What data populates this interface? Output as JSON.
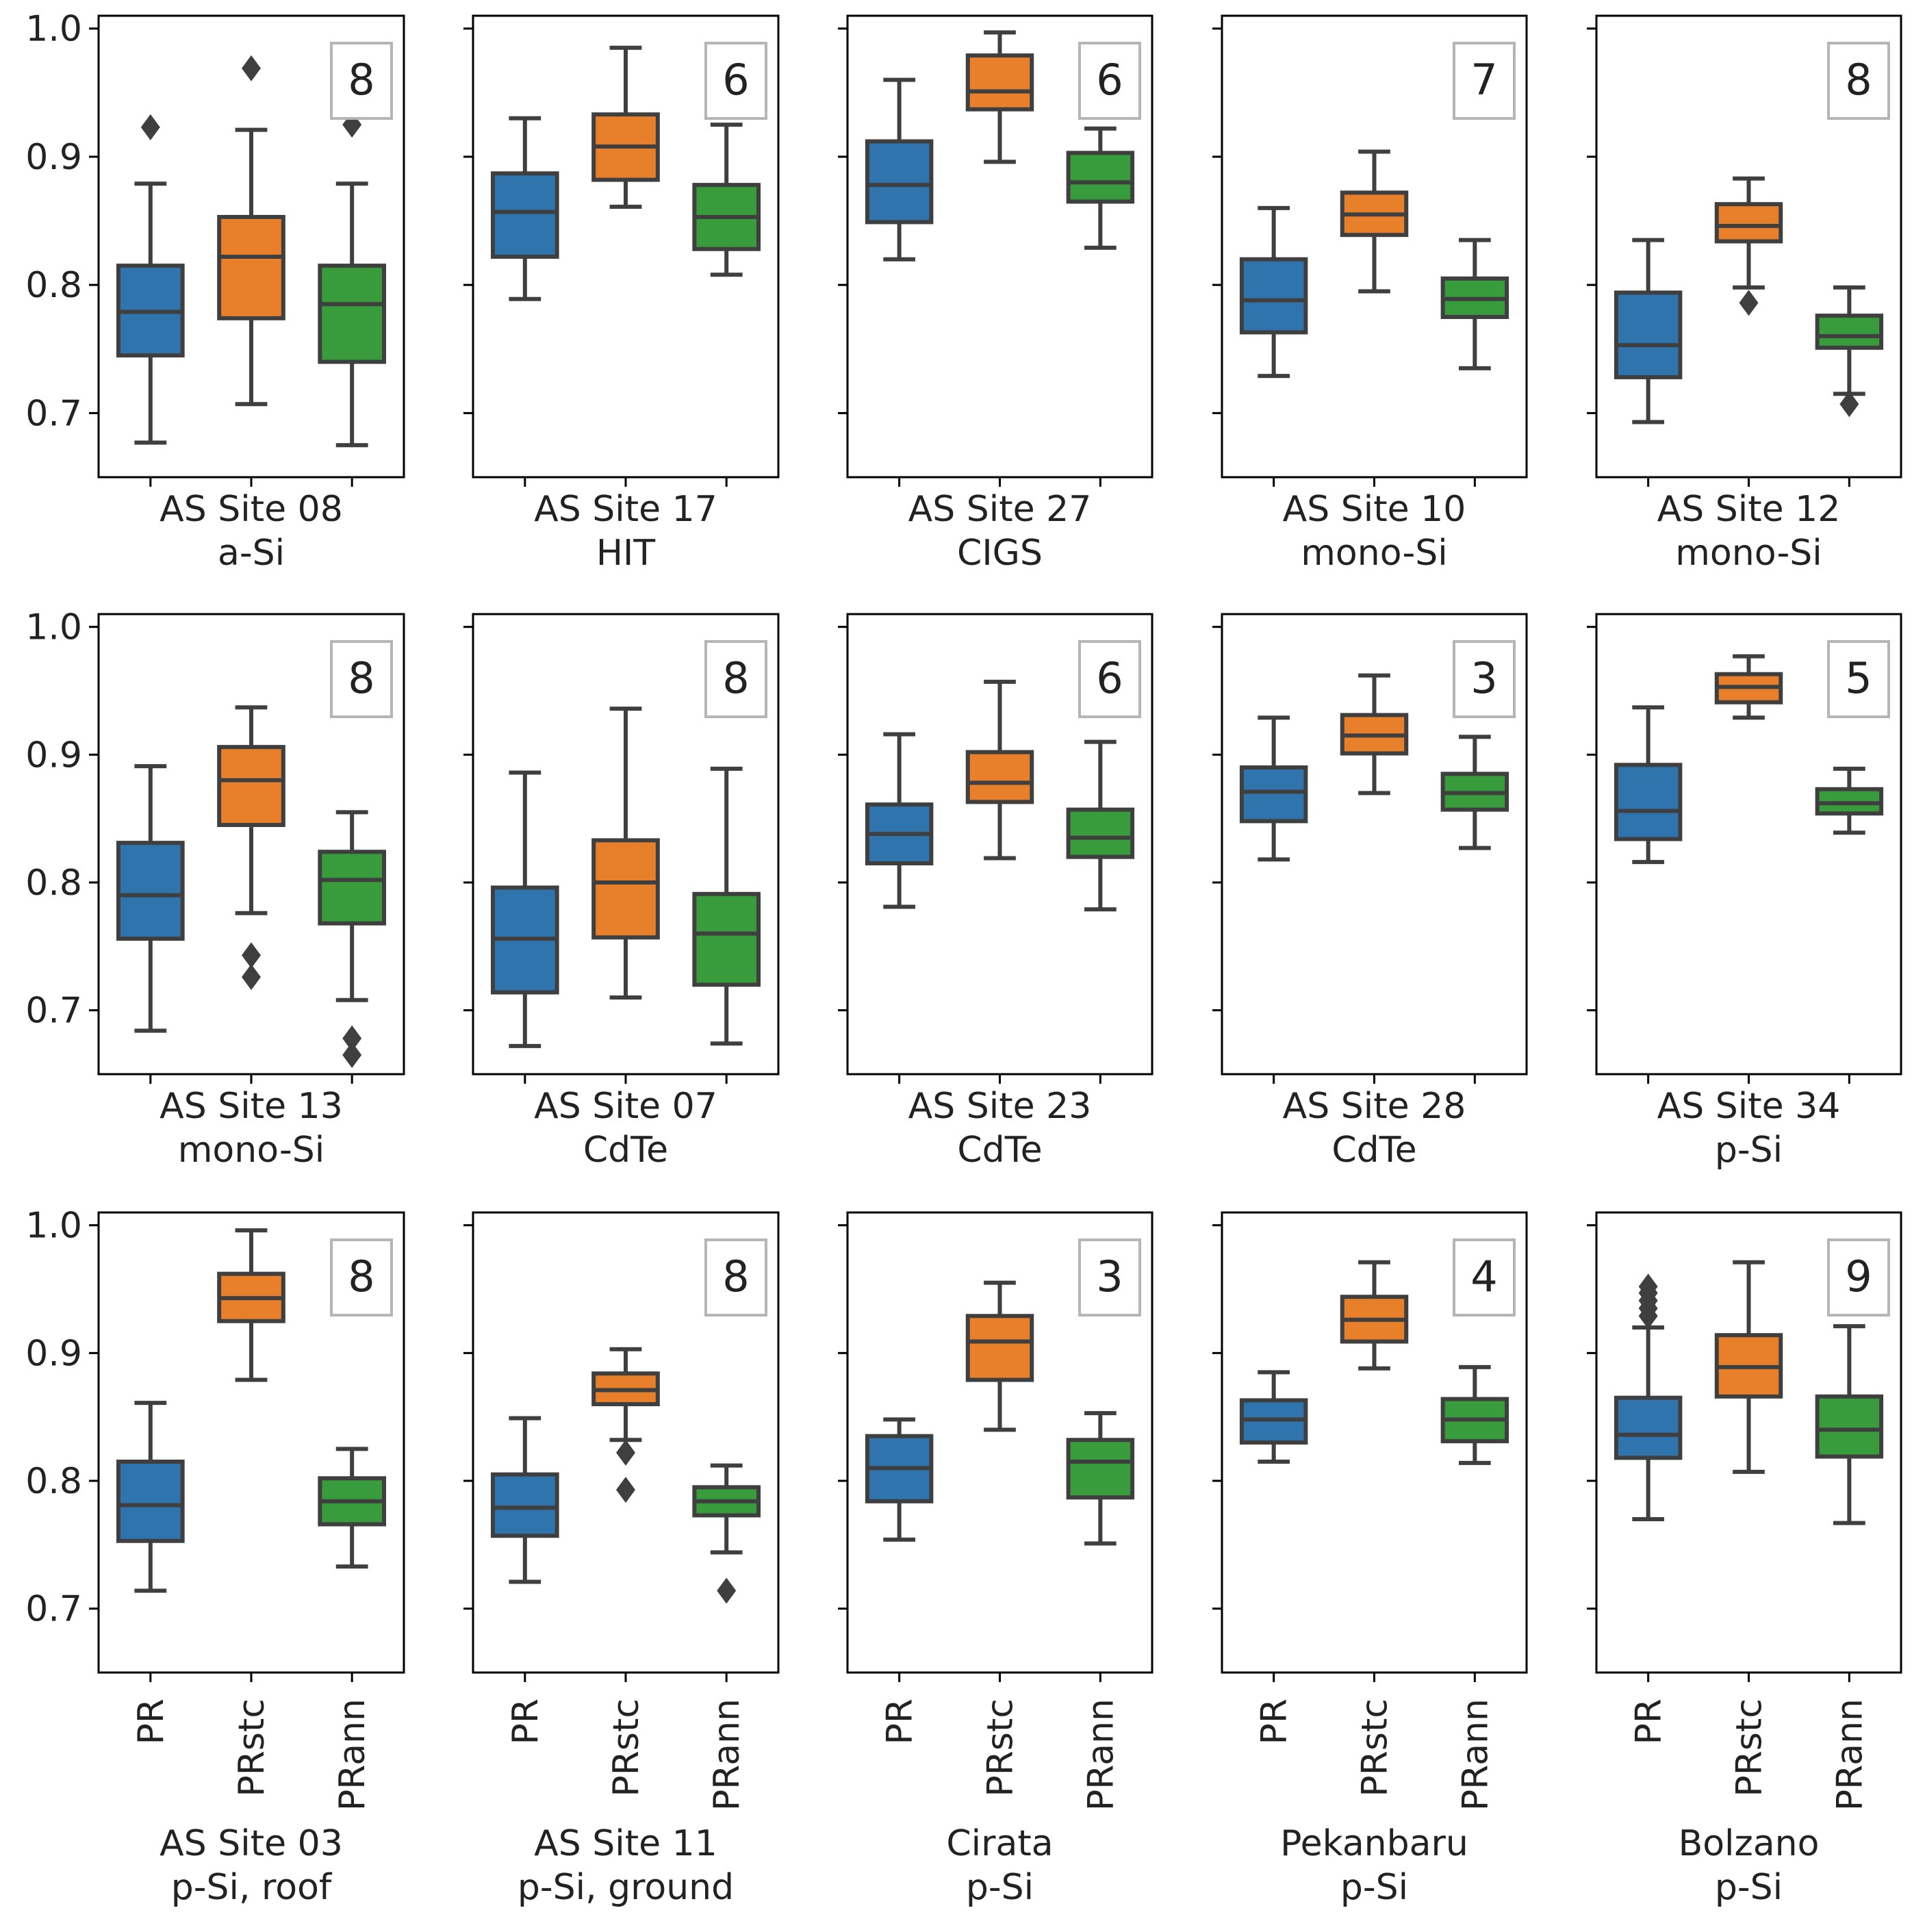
{
  "chart_data": {
    "type": "box",
    "layout": "3x5 grid of subplots, shared y-axis per row",
    "ylim": [
      0.65,
      1.01
    ],
    "yticks": [
      "0.7",
      "0.8",
      "0.9",
      "1.0"
    ],
    "ytick_values": [
      0.7,
      0.8,
      0.9,
      1.0
    ],
    "series": [
      {
        "name": "PR",
        "color": "#2f74ad"
      },
      {
        "name": "PRstc",
        "color": "#e8802b"
      },
      {
        "name": "PRann",
        "color": "#389b3c"
      }
    ],
    "panels": [
      {
        "row": 0,
        "col": 0,
        "site": "AS Site 08",
        "tech": "a-Si",
        "n": "8",
        "boxes": [
          {
            "q1": 0.745,
            "median": 0.779,
            "q3": 0.815,
            "wlo": 0.677,
            "whi": 0.879,
            "outliers": [
              0.923
            ]
          },
          {
            "q1": 0.774,
            "median": 0.822,
            "q3": 0.853,
            "wlo": 0.707,
            "whi": 0.921,
            "outliers": [
              0.969
            ]
          },
          {
            "q1": 0.74,
            "median": 0.785,
            "q3": 0.815,
            "wlo": 0.675,
            "whi": 0.879,
            "outliers": [
              0.925
            ]
          }
        ]
      },
      {
        "row": 0,
        "col": 1,
        "site": "AS Site 17",
        "tech": "HIT",
        "n": "6",
        "boxes": [
          {
            "q1": 0.822,
            "median": 0.857,
            "q3": 0.887,
            "wlo": 0.789,
            "whi": 0.93,
            "outliers": []
          },
          {
            "q1": 0.882,
            "median": 0.908,
            "q3": 0.933,
            "wlo": 0.861,
            "whi": 0.985,
            "outliers": []
          },
          {
            "q1": 0.828,
            "median": 0.853,
            "q3": 0.878,
            "wlo": 0.808,
            "whi": 0.925,
            "outliers": []
          }
        ]
      },
      {
        "row": 0,
        "col": 2,
        "site": "AS Site 27",
        "tech": "CIGS",
        "n": "6",
        "boxes": [
          {
            "q1": 0.849,
            "median": 0.878,
            "q3": 0.912,
            "wlo": 0.82,
            "whi": 0.96,
            "outliers": []
          },
          {
            "q1": 0.937,
            "median": 0.951,
            "q3": 0.979,
            "wlo": 0.896,
            "whi": 0.997,
            "outliers": []
          },
          {
            "q1": 0.865,
            "median": 0.88,
            "q3": 0.903,
            "wlo": 0.829,
            "whi": 0.922,
            "outliers": []
          }
        ]
      },
      {
        "row": 0,
        "col": 3,
        "site": "AS Site 10",
        "tech": "mono-Si",
        "n": "7",
        "boxes": [
          {
            "q1": 0.763,
            "median": 0.788,
            "q3": 0.82,
            "wlo": 0.729,
            "whi": 0.86,
            "outliers": []
          },
          {
            "q1": 0.839,
            "median": 0.855,
            "q3": 0.872,
            "wlo": 0.795,
            "whi": 0.904,
            "outliers": []
          },
          {
            "q1": 0.775,
            "median": 0.789,
            "q3": 0.805,
            "wlo": 0.735,
            "whi": 0.835,
            "outliers": []
          }
        ]
      },
      {
        "row": 0,
        "col": 4,
        "site": "AS Site 12",
        "tech": "mono-Si",
        "n": "8",
        "boxes": [
          {
            "q1": 0.728,
            "median": 0.753,
            "q3": 0.794,
            "wlo": 0.693,
            "whi": 0.835,
            "outliers": []
          },
          {
            "q1": 0.834,
            "median": 0.846,
            "q3": 0.863,
            "wlo": 0.798,
            "whi": 0.883,
            "outliers": [
              0.786
            ]
          },
          {
            "q1": 0.751,
            "median": 0.76,
            "q3": 0.776,
            "wlo": 0.715,
            "whi": 0.798,
            "outliers": [
              0.707
            ]
          }
        ]
      },
      {
        "row": 1,
        "col": 0,
        "site": "AS Site 13",
        "tech": "mono-Si",
        "n": "8",
        "boxes": [
          {
            "q1": 0.756,
            "median": 0.79,
            "q3": 0.831,
            "wlo": 0.684,
            "whi": 0.891,
            "outliers": []
          },
          {
            "q1": 0.845,
            "median": 0.88,
            "q3": 0.906,
            "wlo": 0.776,
            "whi": 0.937,
            "outliers": [
              0.743,
              0.726
            ]
          },
          {
            "q1": 0.768,
            "median": 0.802,
            "q3": 0.824,
            "wlo": 0.708,
            "whi": 0.855,
            "outliers": [
              0.678,
              0.665
            ]
          }
        ]
      },
      {
        "row": 1,
        "col": 1,
        "site": "AS Site 07",
        "tech": "CdTe",
        "n": "8",
        "boxes": [
          {
            "q1": 0.714,
            "median": 0.756,
            "q3": 0.796,
            "wlo": 0.672,
            "whi": 0.886,
            "outliers": []
          },
          {
            "q1": 0.757,
            "median": 0.8,
            "q3": 0.833,
            "wlo": 0.71,
            "whi": 0.936,
            "outliers": []
          },
          {
            "q1": 0.72,
            "median": 0.76,
            "q3": 0.791,
            "wlo": 0.674,
            "whi": 0.889,
            "outliers": []
          }
        ]
      },
      {
        "row": 1,
        "col": 2,
        "site": "AS Site 23",
        "tech": "CdTe",
        "n": "6",
        "boxes": [
          {
            "q1": 0.815,
            "median": 0.838,
            "q3": 0.861,
            "wlo": 0.781,
            "whi": 0.916,
            "outliers": []
          },
          {
            "q1": 0.863,
            "median": 0.878,
            "q3": 0.902,
            "wlo": 0.819,
            "whi": 0.957,
            "outliers": []
          },
          {
            "q1": 0.82,
            "median": 0.835,
            "q3": 0.857,
            "wlo": 0.779,
            "whi": 0.91,
            "outliers": []
          }
        ]
      },
      {
        "row": 1,
        "col": 3,
        "site": "AS Site 28",
        "tech": "CdTe",
        "n": "3",
        "boxes": [
          {
            "q1": 0.848,
            "median": 0.871,
            "q3": 0.89,
            "wlo": 0.818,
            "whi": 0.929,
            "outliers": []
          },
          {
            "q1": 0.901,
            "median": 0.915,
            "q3": 0.931,
            "wlo": 0.87,
            "whi": 0.962,
            "outliers": []
          },
          {
            "q1": 0.857,
            "median": 0.87,
            "q3": 0.885,
            "wlo": 0.827,
            "whi": 0.914,
            "outliers": []
          }
        ]
      },
      {
        "row": 1,
        "col": 4,
        "site": "AS Site 34",
        "tech": "p-Si",
        "n": "5",
        "boxes": [
          {
            "q1": 0.834,
            "median": 0.856,
            "q3": 0.892,
            "wlo": 0.816,
            "whi": 0.937,
            "outliers": []
          },
          {
            "q1": 0.941,
            "median": 0.953,
            "q3": 0.963,
            "wlo": 0.929,
            "whi": 0.977,
            "outliers": []
          },
          {
            "q1": 0.854,
            "median": 0.862,
            "q3": 0.873,
            "wlo": 0.839,
            "whi": 0.889,
            "outliers": []
          }
        ]
      },
      {
        "row": 2,
        "col": 0,
        "site": "AS Site 03",
        "tech": "p-Si, roof",
        "n": "8",
        "boxes": [
          {
            "q1": 0.753,
            "median": 0.781,
            "q3": 0.815,
            "wlo": 0.714,
            "whi": 0.861,
            "outliers": []
          },
          {
            "q1": 0.925,
            "median": 0.943,
            "q3": 0.962,
            "wlo": 0.879,
            "whi": 0.996,
            "outliers": []
          },
          {
            "q1": 0.766,
            "median": 0.784,
            "q3": 0.802,
            "wlo": 0.733,
            "whi": 0.825,
            "outliers": []
          }
        ]
      },
      {
        "row": 2,
        "col": 1,
        "site": "AS Site 11",
        "tech": "p-Si, ground",
        "n": "8",
        "boxes": [
          {
            "q1": 0.757,
            "median": 0.779,
            "q3": 0.805,
            "wlo": 0.721,
            "whi": 0.849,
            "outliers": []
          },
          {
            "q1": 0.86,
            "median": 0.871,
            "q3": 0.884,
            "wlo": 0.832,
            "whi": 0.903,
            "outliers": [
              0.822,
              0.793
            ]
          },
          {
            "q1": 0.773,
            "median": 0.784,
            "q3": 0.795,
            "wlo": 0.744,
            "whi": 0.812,
            "outliers": [
              0.714
            ]
          }
        ]
      },
      {
        "row": 2,
        "col": 2,
        "site": "Cirata",
        "tech": "p-Si",
        "n": "3",
        "boxes": [
          {
            "q1": 0.784,
            "median": 0.81,
            "q3": 0.835,
            "wlo": 0.754,
            "whi": 0.848,
            "outliers": []
          },
          {
            "q1": 0.879,
            "median": 0.909,
            "q3": 0.929,
            "wlo": 0.84,
            "whi": 0.955,
            "outliers": []
          },
          {
            "q1": 0.787,
            "median": 0.815,
            "q3": 0.832,
            "wlo": 0.751,
            "whi": 0.853,
            "outliers": []
          }
        ]
      },
      {
        "row": 2,
        "col": 3,
        "site": "Pekanbaru",
        "tech": "p-Si",
        "n": "4",
        "boxes": [
          {
            "q1": 0.83,
            "median": 0.848,
            "q3": 0.863,
            "wlo": 0.815,
            "whi": 0.885,
            "outliers": []
          },
          {
            "q1": 0.909,
            "median": 0.926,
            "q3": 0.944,
            "wlo": 0.888,
            "whi": 0.971,
            "outliers": []
          },
          {
            "q1": 0.831,
            "median": 0.848,
            "q3": 0.864,
            "wlo": 0.814,
            "whi": 0.889,
            "outliers": []
          }
        ]
      },
      {
        "row": 2,
        "col": 4,
        "site": "Bolzano",
        "tech": "p-Si",
        "n": "9",
        "boxes": [
          {
            "q1": 0.818,
            "median": 0.836,
            "q3": 0.865,
            "wlo": 0.77,
            "whi": 0.92,
            "outliers": [
              0.929,
              0.935,
              0.941,
              0.947,
              0.952
            ]
          },
          {
            "q1": 0.866,
            "median": 0.889,
            "q3": 0.914,
            "wlo": 0.807,
            "whi": 0.971,
            "outliers": []
          },
          {
            "q1": 0.819,
            "median": 0.84,
            "q3": 0.866,
            "wlo": 0.767,
            "whi": 0.921,
            "outliers": []
          }
        ]
      }
    ]
  }
}
